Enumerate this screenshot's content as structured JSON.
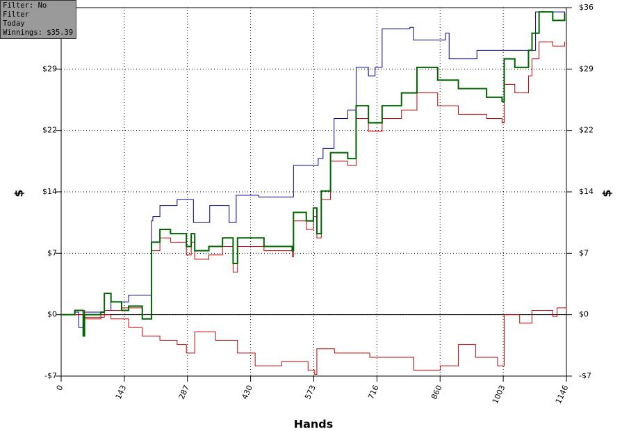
{
  "chart_data": {
    "type": "line",
    "info": [
      "Filter: No Filter",
      "Today",
      "Winnings: $35.39"
    ],
    "xlabel": "Hands",
    "ylabel": "$",
    "xlim": [
      0,
      1146
    ],
    "xticks": [
      0,
      {
        "value": 143.25,
        "label": "143"
      },
      {
        "value": 286.5,
        "label": "287"
      },
      {
        "value": 429.75,
        "label": "430"
      },
      {
        "value": 573,
        "label": "573"
      },
      {
        "value": 716.25,
        "label": "716"
      },
      {
        "value": 859.5,
        "label": "860"
      },
      {
        "value": 1002.75,
        "label": "1003"
      },
      {
        "value": 1146,
        "label": "1146"
      }
    ],
    "ylim": [
      -7.2,
      36
    ],
    "yticks": [
      {
        "value": -7.2,
        "label": "-$7"
      },
      {
        "value": 0,
        "label": "$0"
      },
      {
        "value": 7.2,
        "label": "$7"
      },
      {
        "value": 14.4,
        "label": "$14"
      },
      {
        "value": 21.6,
        "label": "$22"
      },
      {
        "value": 28.8,
        "label": "$29"
      },
      {
        "value": 36,
        "label": "$36"
      }
    ],
    "grid": true,
    "step": true,
    "series": [
      {
        "color": "#00008b",
        "width": 1,
        "x": [
          0,
          31,
          40,
          50,
          53,
          98,
          113,
          153,
          205,
          208,
          224,
          263,
          300,
          337,
          381,
          397,
          448,
          524,
          527,
          583,
          594,
          619,
          650,
          669,
          697,
          712,
          728,
          791,
          799,
          872,
          880,
          943,
          1005,
          1076,
          1142
        ],
        "values": [
          0,
          0.3,
          -1.5,
          -2,
          0.3,
          0.5,
          1.5,
          2.3,
          11,
          11.5,
          12.8,
          13.5,
          10.8,
          12.8,
          10.8,
          14,
          13.8,
          13.8,
          17.5,
          18.3,
          19.5,
          23,
          24,
          29,
          28,
          29,
          33.5,
          33.7,
          32.2,
          33,
          30,
          31,
          31,
          35.5,
          35.3
        ]
      },
      {
        "color": "#c00000",
        "width": 1,
        "x": [
          0,
          53,
          98,
          137,
          184,
          205,
          224,
          248,
          284,
          295,
          303,
          335,
          366,
          390,
          400,
          460,
          524,
          527,
          556,
          572,
          580,
          590,
          611,
          650,
          669,
          697,
          728,
          772,
          807,
          854,
          901,
          965,
          1000,
          1005,
          1029,
          1060,
          1068,
          1084,
          1115,
          1142
        ],
        "values": [
          0,
          -0.3,
          0.5,
          0.8,
          -0.5,
          7.5,
          9,
          8.5,
          7,
          8.5,
          6.5,
          7,
          8,
          5,
          8,
          7.5,
          6.8,
          11,
          10,
          11.5,
          9,
          13.5,
          18,
          17.5,
          23,
          21.5,
          23,
          24,
          26,
          24.5,
          23.5,
          23,
          22.5,
          27,
          26,
          28,
          30,
          32,
          31.5,
          32
        ]
      },
      {
        "color": "#c00000",
        "width": 1,
        "x": [
          0,
          31,
          53,
          90,
          113,
          153,
          184,
          224,
          263,
          284,
          303,
          350,
          400,
          440,
          500,
          560,
          575,
          580,
          620,
          700,
          760,
          800,
          860,
          901,
          940,
          990,
          1005,
          1040,
          1068,
          1115,
          1125,
          1146
        ],
        "values": [
          0,
          0.5,
          -0.5,
          0,
          -0.5,
          -1.5,
          -2.5,
          -3,
          -3.5,
          -4.5,
          -2,
          -3,
          -4.5,
          -6,
          -5.5,
          -6.5,
          -7,
          -4,
          -4.5,
          -5,
          -5,
          -6.5,
          -6,
          -3.5,
          -5,
          -6,
          0,
          -1,
          0.5,
          -0.2,
          0.8,
          0.5
        ]
      },
      {
        "color": "#006400",
        "width": 2,
        "x": [
          0,
          31,
          50,
          53,
          90,
          98,
          113,
          137,
          153,
          184,
          205,
          224,
          248,
          284,
          295,
          303,
          335,
          366,
          390,
          400,
          460,
          524,
          527,
          556,
          572,
          580,
          590,
          611,
          650,
          669,
          697,
          728,
          772,
          807,
          854,
          901,
          965,
          1000,
          1005,
          1029,
          1060,
          1068,
          1084,
          1115,
          1142
        ],
        "values": [
          0,
          0.5,
          -2.5,
          0,
          0.3,
          2.5,
          1.5,
          0.5,
          1,
          -0.5,
          8.5,
          10,
          9.5,
          8,
          9.5,
          7.5,
          8,
          9,
          6,
          9,
          8,
          7.5,
          12,
          11,
          12.5,
          9.5,
          14.5,
          19,
          18.3,
          24.5,
          22.5,
          24.5,
          26,
          29,
          27.5,
          26.5,
          25.5,
          25,
          30,
          29,
          31,
          33,
          35.5,
          34.5,
          35.39
        ]
      }
    ]
  }
}
